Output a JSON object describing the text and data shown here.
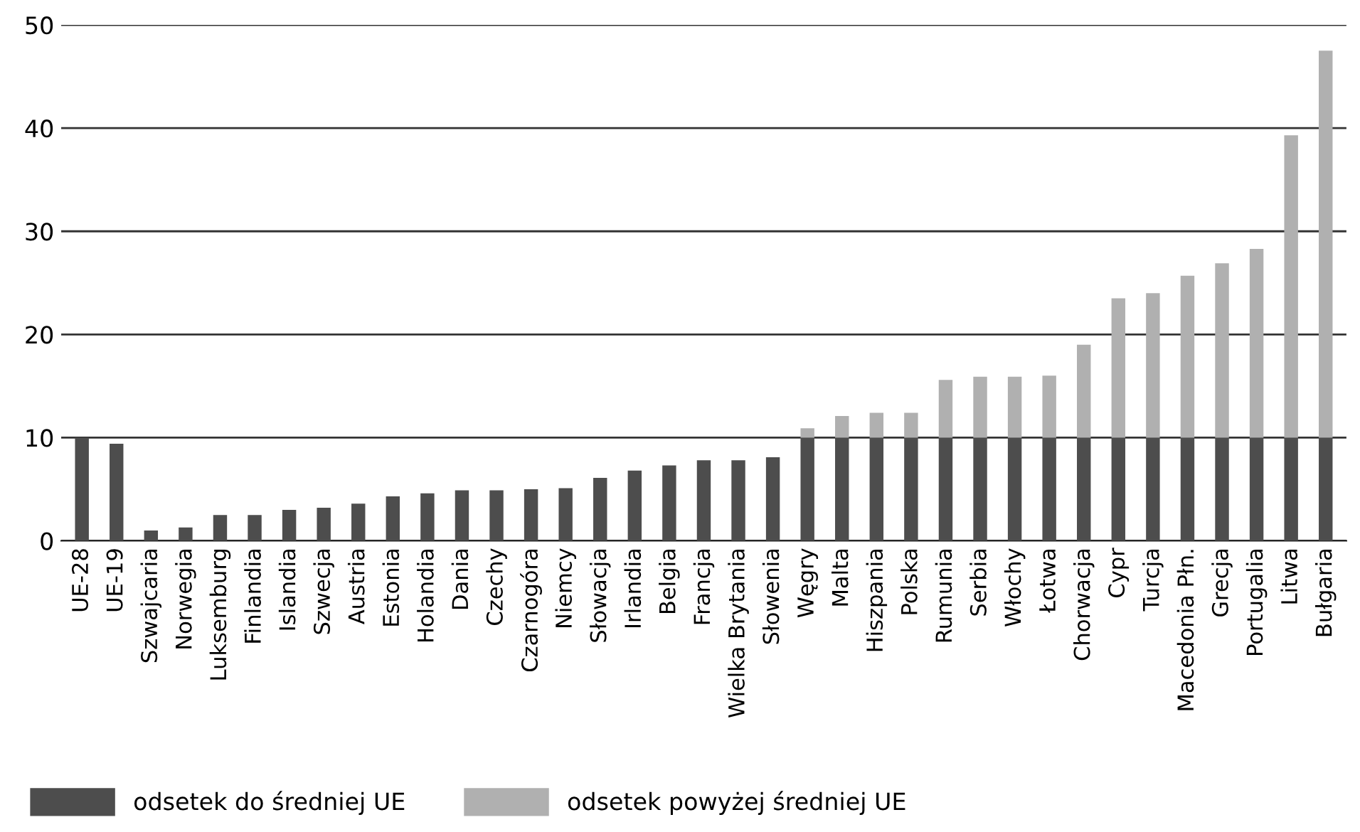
{
  "chart_data": {
    "type": "bar",
    "stacked": true,
    "categories": [
      "UE-28",
      "UE-19",
      "Szwajcaria",
      "Norwegia",
      "Luksemburg",
      "Finlandia",
      "Islandia",
      "Szwecja",
      "Austria",
      "Estonia",
      "Holandia",
      "Dania",
      "Czechy",
      "Czarnogóra",
      "Niemcy",
      "Słowacja",
      "Irlandia",
      "Belgia",
      "Francja",
      "Wielka Brytania",
      "Słowenia",
      "Węgry",
      "Malta",
      "Hiszpania",
      "Polska",
      "Rumunia",
      "Serbia",
      "Włochy",
      "Łotwa",
      "Chorwacja",
      "Cypr",
      "Turcja",
      "Macedonia Płn.",
      "Grecja",
      "Portugalia",
      "Litwa",
      "Bułgaria"
    ],
    "series": [
      {
        "name": "odsetek do średniej UE",
        "color": "#4d4d4d",
        "values": [
          10,
          9.4,
          1.0,
          1.3,
          2.5,
          2.5,
          3.0,
          3.2,
          3.6,
          4.3,
          4.6,
          4.9,
          4.9,
          5.0,
          5.1,
          6.1,
          6.8,
          7.3,
          7.8,
          7.8,
          8.1,
          10,
          10,
          10,
          10,
          10,
          10,
          10,
          10,
          10,
          10,
          10,
          10,
          10,
          10,
          10,
          10
        ]
      },
      {
        "name": "odsetek powyżej średniej UE",
        "color": "#b0b0b0",
        "values": [
          null,
          null,
          null,
          null,
          null,
          null,
          null,
          null,
          null,
          null,
          null,
          null,
          null,
          null,
          null,
          null,
          null,
          null,
          null,
          null,
          null,
          0.9,
          2.1,
          2.4,
          2.4,
          5.6,
          5.9,
          5.9,
          6.0,
          9.0,
          13.5,
          14.0,
          15.7,
          16.9,
          18.3,
          29.3,
          37.5
        ]
      }
    ],
    "ylim": [
      0,
      50
    ],
    "yticks": [
      0,
      10,
      20,
      30,
      40,
      50
    ],
    "grid": "y",
    "legend": "bottom left"
  }
}
